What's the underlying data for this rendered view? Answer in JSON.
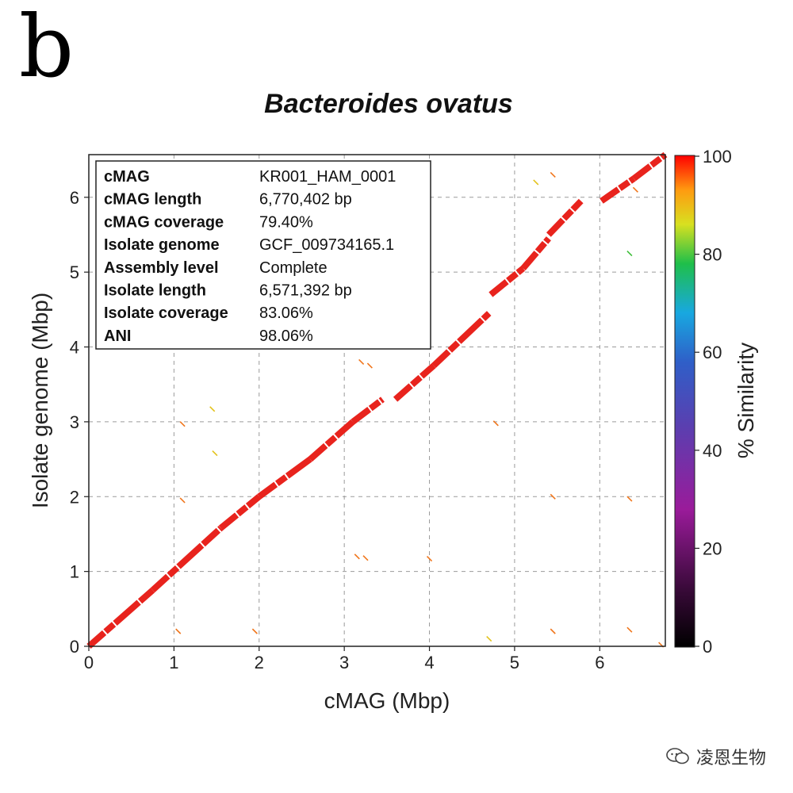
{
  "panel_label": "b",
  "watermark": {
    "text": "凌恩生物",
    "icon": "wechat-icon"
  },
  "chart_data": {
    "type": "scatter",
    "title": "Bacteroides ovatus",
    "xlabel": "cMAG (Mbp)",
    "ylabel": "Isolate genome (Mbp)",
    "xlim": [
      0,
      6.77
    ],
    "ylim": [
      0,
      6.57
    ],
    "xticks": [
      "0",
      "1",
      "2",
      "3",
      "4",
      "5",
      "6"
    ],
    "yticks": [
      "0",
      "1",
      "2",
      "3",
      "4",
      "5",
      "6"
    ],
    "grid": true,
    "colorbar": {
      "label": "% Similarity",
      "range": [
        0,
        100
      ],
      "ticks": [
        "0",
        "20",
        "40",
        "60",
        "80",
        "100"
      ]
    },
    "info_box": [
      {
        "key": "cMAG",
        "value": "KR001_HAM_0001"
      },
      {
        "key": "cMAG length",
        "value": "6,770,402 bp"
      },
      {
        "key": "cMAG coverage",
        "value": "79.40%"
      },
      {
        "key": "Isolate genome",
        "value": "GCF_009734165.1"
      },
      {
        "key": "Assembly level",
        "value": "Complete"
      },
      {
        "key": "Isolate length",
        "value": "6,571,392 bp"
      },
      {
        "key": "Isolate coverage",
        "value": "83.06%"
      },
      {
        "key": "ANI",
        "value": "98.06%"
      }
    ],
    "alignment_segments": [
      {
        "x": [
          0.0,
          0.75
        ],
        "y": [
          0.0,
          0.75
        ],
        "similarity": 98
      },
      {
        "x": [
          0.75,
          1.55
        ],
        "y": [
          0.75,
          1.58
        ],
        "similarity": 98
      },
      {
        "x": [
          1.55,
          2.0
        ],
        "y": [
          1.58,
          2.0
        ],
        "similarity": 97
      },
      {
        "x": [
          2.0,
          2.6
        ],
        "y": [
          2.0,
          2.5
        ],
        "similarity": 98
      },
      {
        "x": [
          2.6,
          3.1
        ],
        "y": [
          2.5,
          3.0
        ],
        "similarity": 98
      },
      {
        "x": [
          3.1,
          3.45
        ],
        "y": [
          3.0,
          3.3
        ],
        "similarity": 98
      },
      {
        "x": [
          3.6,
          4.05
        ],
        "y": [
          3.3,
          3.75
        ],
        "similarity": 98
      },
      {
        "x": [
          4.05,
          4.7
        ],
        "y": [
          3.75,
          4.45
        ],
        "similarity": 98
      },
      {
        "x": [
          4.72,
          5.1
        ],
        "y": [
          4.7,
          5.05
        ],
        "similarity": 98
      },
      {
        "x": [
          5.1,
          5.4
        ],
        "y": [
          5.05,
          5.45
        ],
        "similarity": 98
      },
      {
        "x": [
          5.4,
          5.78
        ],
        "y": [
          5.5,
          5.95
        ],
        "similarity": 98
      },
      {
        "x": [
          6.02,
          6.4
        ],
        "y": [
          5.95,
          6.25
        ],
        "similarity": 97
      },
      {
        "x": [
          6.4,
          6.77
        ],
        "y": [
          6.25,
          6.57
        ],
        "similarity": 98
      }
    ],
    "minor_hits": [
      {
        "x": 1.1,
        "y": 2.97,
        "similarity": 96
      },
      {
        "x": 1.45,
        "y": 3.17,
        "similarity": 88
      },
      {
        "x": 1.48,
        "y": 2.58,
        "similarity": 90
      },
      {
        "x": 1.1,
        "y": 1.95,
        "similarity": 95
      },
      {
        "x": 3.2,
        "y": 3.8,
        "similarity": 96
      },
      {
        "x": 3.3,
        "y": 3.75,
        "similarity": 96
      },
      {
        "x": 3.15,
        "y": 1.2,
        "similarity": 96
      },
      {
        "x": 3.25,
        "y": 1.18,
        "similarity": 96
      },
      {
        "x": 4.0,
        "y": 1.17,
        "similarity": 96
      },
      {
        "x": 1.05,
        "y": 0.2,
        "similarity": 96
      },
      {
        "x": 1.95,
        "y": 0.2,
        "similarity": 96
      },
      {
        "x": 4.78,
        "y": 2.98,
        "similarity": 96
      },
      {
        "x": 5.45,
        "y": 2.0,
        "similarity": 96
      },
      {
        "x": 6.35,
        "y": 1.97,
        "similarity": 96
      },
      {
        "x": 5.45,
        "y": 0.2,
        "similarity": 96
      },
      {
        "x": 6.35,
        "y": 0.22,
        "similarity": 96
      },
      {
        "x": 4.7,
        "y": 0.1,
        "similarity": 88
      },
      {
        "x": 6.72,
        "y": 0.02,
        "similarity": 96
      },
      {
        "x": 5.45,
        "y": 6.3,
        "similarity": 96
      },
      {
        "x": 5.25,
        "y": 6.2,
        "similarity": 88
      },
      {
        "x": 6.35,
        "y": 5.25,
        "similarity": 80
      },
      {
        "x": 6.42,
        "y": 6.1,
        "similarity": 96
      }
    ]
  }
}
